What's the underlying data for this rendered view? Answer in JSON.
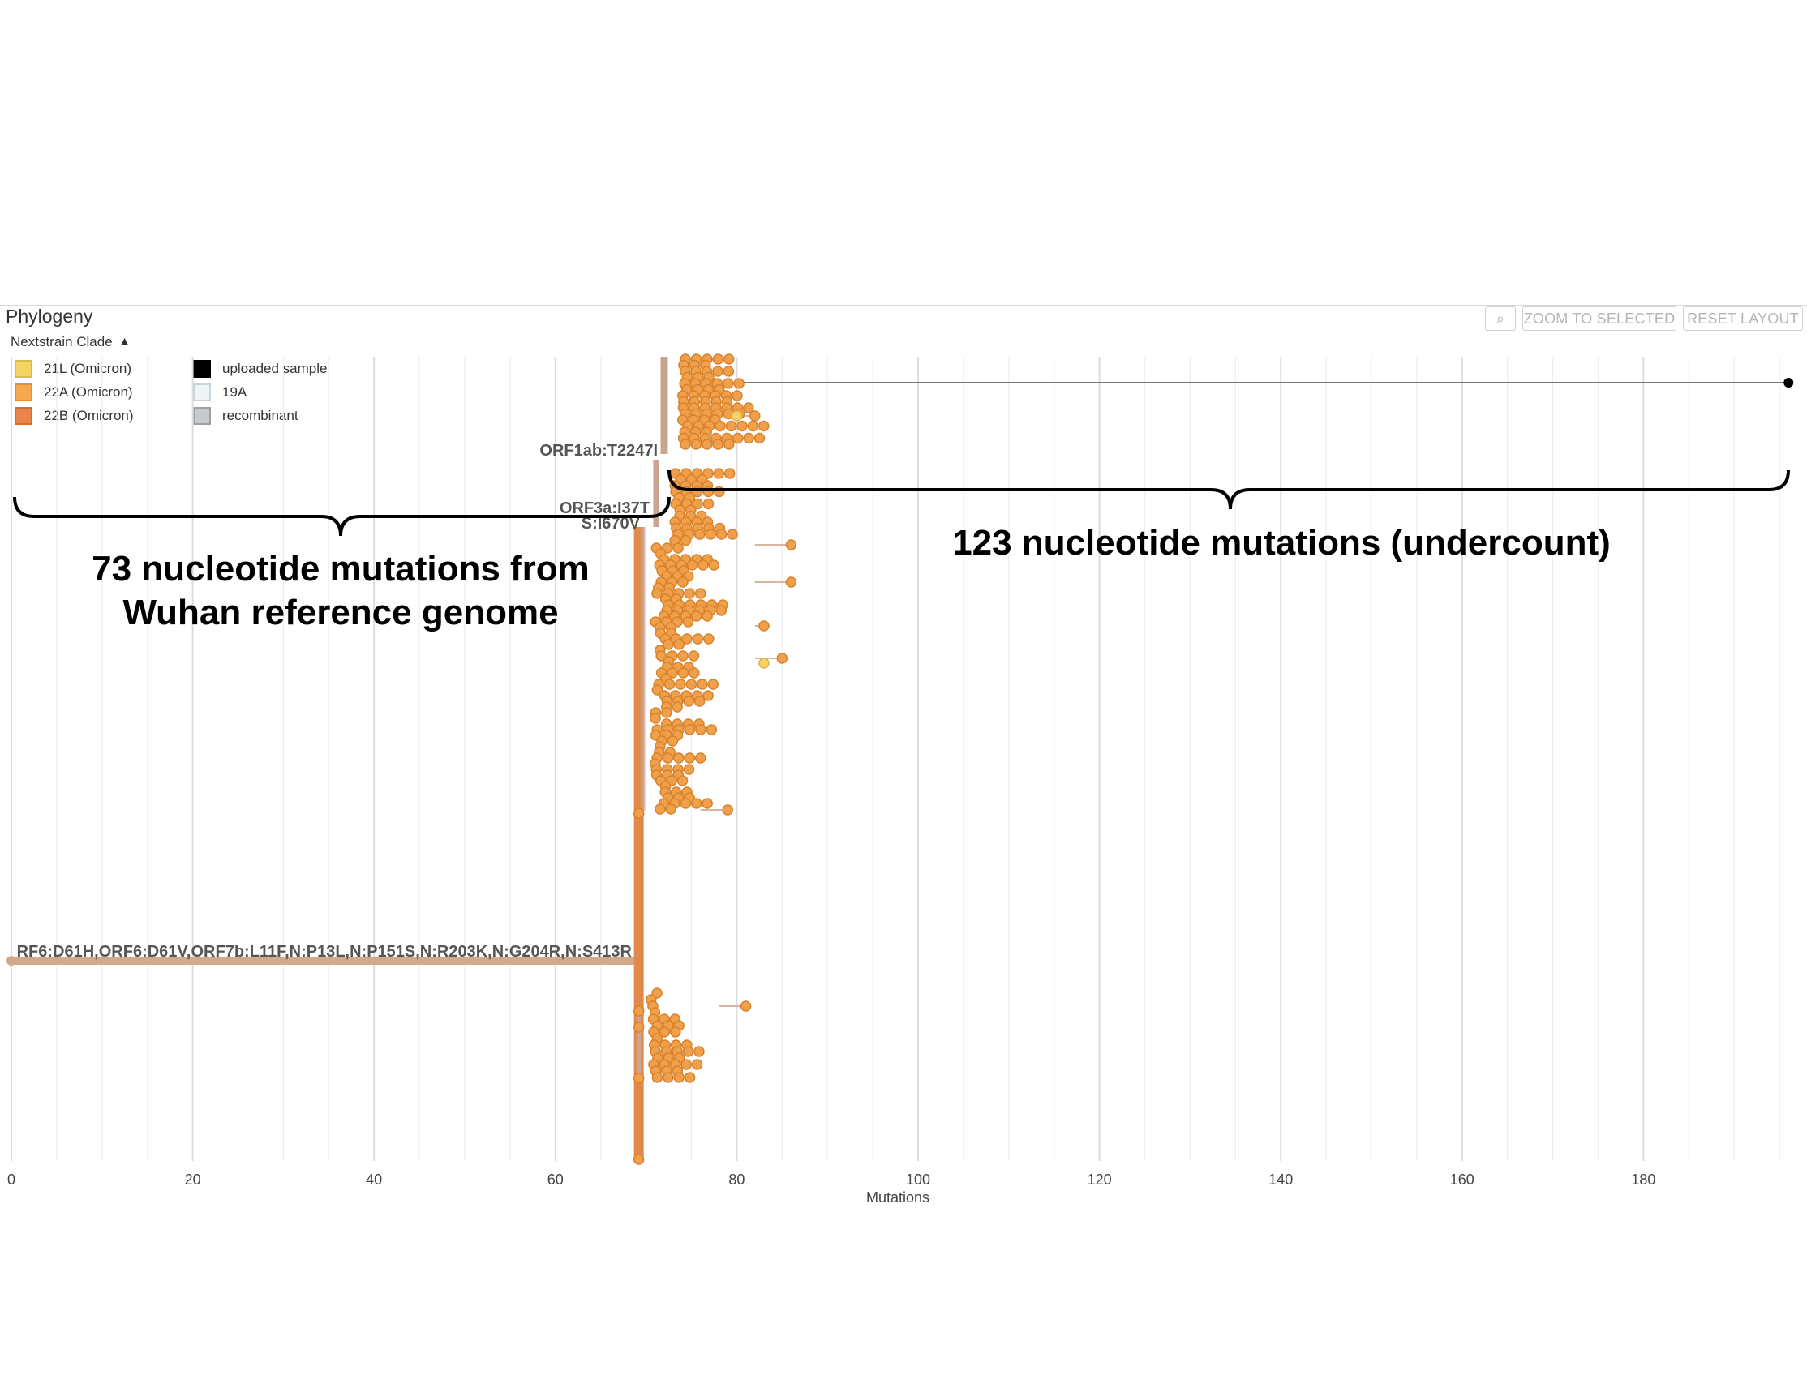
{
  "panel": {
    "title": "Phylogeny",
    "buttons": {
      "zoom_icon": "⌕",
      "zoom_to_selected": "ZOOM TO SELECTED",
      "reset_layout": "RESET LAYOUT"
    }
  },
  "legend": {
    "title": "Nextstrain Clade",
    "items": [
      {
        "label": "21L (Omicron)",
        "color": "#f6d365",
        "border": "#e0b84a"
      },
      {
        "label": "22A (Omicron)",
        "color": "#f5a94e",
        "border": "#e08f35"
      },
      {
        "label": "22B (Omicron)",
        "color": "#ea844a",
        "border": "#d66b30"
      },
      {
        "label": "uploaded sample",
        "color": "#000000",
        "border": "#000000"
      },
      {
        "label": "19A",
        "color": "#eef4f7",
        "border": "#c9d3d8"
      },
      {
        "label": "recombinant",
        "color": "#c7c9cc",
        "border": "#9ea2a8"
      }
    ]
  },
  "tree": {
    "branch_labels": {
      "root": "RF6:D61H,ORF6:D61V,ORF7b:L11F,N:P13L,N:P151S,N:R203K,N:G204R,N:S413R",
      "orf1ab": "ORF1ab:T2247I",
      "orf3a": "ORF3a:I37T",
      "spike": "S:I670V"
    },
    "x_axis": {
      "label": "Mutations",
      "ticks": [
        "0",
        "20",
        "40",
        "60",
        "80",
        "100",
        "120",
        "140",
        "160",
        "180"
      ],
      "min": 0,
      "max": 197
    },
    "uploaded_sample_mutations": 196,
    "clade_branch_mutations": 69,
    "colors": {
      "branch": "#d99a6c",
      "trunk": "#e0894a",
      "tip": "#f0a04b",
      "tip_stroke": "#d9822c",
      "tip_alt": "#f6d365",
      "root_branch": "#d2a98a",
      "grid_major": "#dcdcdc",
      "grid_minor": "#eeeeee"
    }
  },
  "annotations": {
    "left_brace_text_1": "73 nucleotide mutations from",
    "left_brace_text_2": "Wuhan reference genome",
    "right_brace_text": "123 nucleotide mutations (undercount)"
  }
}
